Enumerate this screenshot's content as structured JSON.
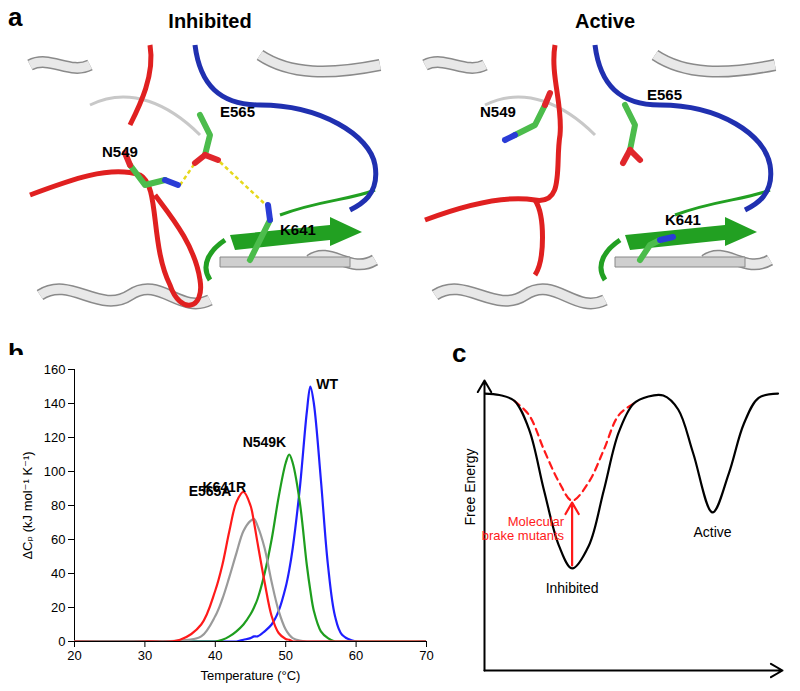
{
  "diagram": {
    "title": "a",
    "panels": [
      {
        "title": "Inhibited",
        "residues": [
          "N549",
          "E565",
          "K641"
        ]
      },
      {
        "title": "Active",
        "residues": [
          "N549",
          "E565",
          "K641"
        ]
      }
    ]
  },
  "chart_data": [
    {
      "title": "b",
      "type": "line",
      "xlabel": "Temperature (°C)",
      "ylabel": "ΔCₚ (kJ mol⁻¹ K⁻¹)",
      "x": [
        20,
        30,
        35,
        38,
        40,
        41,
        42,
        43,
        44,
        45,
        45.5,
        46,
        47,
        48,
        49,
        50,
        50.5,
        51,
        52,
        53,
        53.5,
        54,
        55,
        56,
        57,
        58,
        60,
        70
      ],
      "series": [
        {
          "name": "WT",
          "color": "#1f1fff",
          "values": [
            0,
            0,
            0,
            0,
            0,
            0,
            0,
            0,
            1,
            2,
            3,
            3,
            6,
            10,
            18,
            32,
            42,
            55,
            90,
            135,
            150,
            140,
            95,
            45,
            15,
            4,
            0,
            0
          ]
        },
        {
          "name": "N549K",
          "color": "#1e9e1e",
          "values": [
            0,
            0,
            0,
            0,
            0,
            1,
            3,
            6,
            10,
            16,
            20,
            25,
            40,
            60,
            85,
            105,
            110,
            105,
            82,
            45,
            30,
            18,
            6,
            2,
            0,
            0,
            0,
            0
          ]
        },
        {
          "name": "K641R",
          "color": "#9a9a9a",
          "values": [
            0,
            0,
            0.5,
            3,
            15,
            25,
            38,
            52,
            65,
            71,
            72,
            68,
            55,
            35,
            18,
            7,
            4,
            2,
            0.5,
            0,
            0,
            0,
            0,
            0,
            0,
            0,
            0,
            0
          ]
        },
        {
          "name": "E565A",
          "color": "#ff1a1a",
          "values": [
            0,
            0,
            1,
            10,
            30,
            45,
            65,
            82,
            88,
            80,
            70,
            58,
            35,
            15,
            5,
            1.5,
            1,
            0,
            0,
            0,
            0,
            0,
            0,
            0,
            0,
            0,
            0,
            0
          ]
        }
      ],
      "xlim": [
        20,
        70
      ],
      "xticks": [
        20,
        30,
        40,
        50,
        60,
        70
      ],
      "ylim": [
        0,
        160
      ],
      "yticks": [
        0,
        20,
        40,
        60,
        80,
        100,
        120,
        140,
        160
      ]
    },
    {
      "title": "c",
      "type": "line",
      "ylabel": "Free Energy",
      "x": [
        0,
        0.5,
        1,
        1.5,
        2,
        2.5,
        2.94,
        3.5,
        4,
        4.5,
        5,
        5.5,
        6,
        6.5,
        7,
        7.65,
        8.2,
        8.7,
        9.2,
        9.85
      ],
      "series": [
        {
          "color": "#000000",
          "line_style": "solid",
          "values": [
            9.55,
            9.5,
            9.3,
            8.3,
            6.2,
            4.3,
            3.52,
            4.3,
            6.2,
            8.2,
            9.2,
            9.45,
            9.48,
            9.0,
            7.5,
            5.45,
            6.8,
            8.5,
            9.4,
            9.55
          ]
        },
        {
          "name": "Molecular\nbrake mutants",
          "color": "#ff1a1a",
          "line_style": "dashed",
          "values": [
            null,
            null,
            9.3,
            8.8,
            7.6,
            6.5,
            5.86,
            6.5,
            7.6,
            8.8,
            9.2,
            null,
            null,
            null,
            null,
            null,
            null,
            null,
            null,
            null
          ]
        }
      ],
      "annotations": [
        "Inhibited",
        "Active"
      ],
      "xlim": [
        0,
        10
      ],
      "ylim": [
        0,
        10
      ],
      "tick_labels": false
    }
  ]
}
